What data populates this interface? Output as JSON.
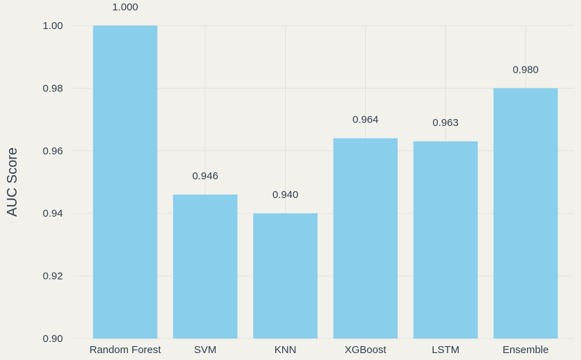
{
  "chart_data": {
    "type": "bar",
    "title": "",
    "xlabel": "",
    "ylabel": "AUC Score",
    "categories": [
      "Random Forest",
      "SVM",
      "KNN",
      "XGBoost",
      "LSTM",
      "Ensemble"
    ],
    "values": [
      1.0,
      0.946,
      0.94,
      0.964,
      0.963,
      0.98
    ],
    "value_labels": [
      "1.000",
      "0.946",
      "0.940",
      "0.964",
      "0.963",
      "0.980"
    ],
    "ylim": [
      0.9,
      1.0
    ],
    "yticks": [
      "0.90",
      "0.92",
      "0.94",
      "0.96",
      "0.98",
      "1.00"
    ],
    "grid": true,
    "legend": "none",
    "colors": {
      "bar": "#89ceea",
      "background": "#f2f1ec",
      "text": "#2f3e4e",
      "grid": "#e3e2dc"
    }
  }
}
